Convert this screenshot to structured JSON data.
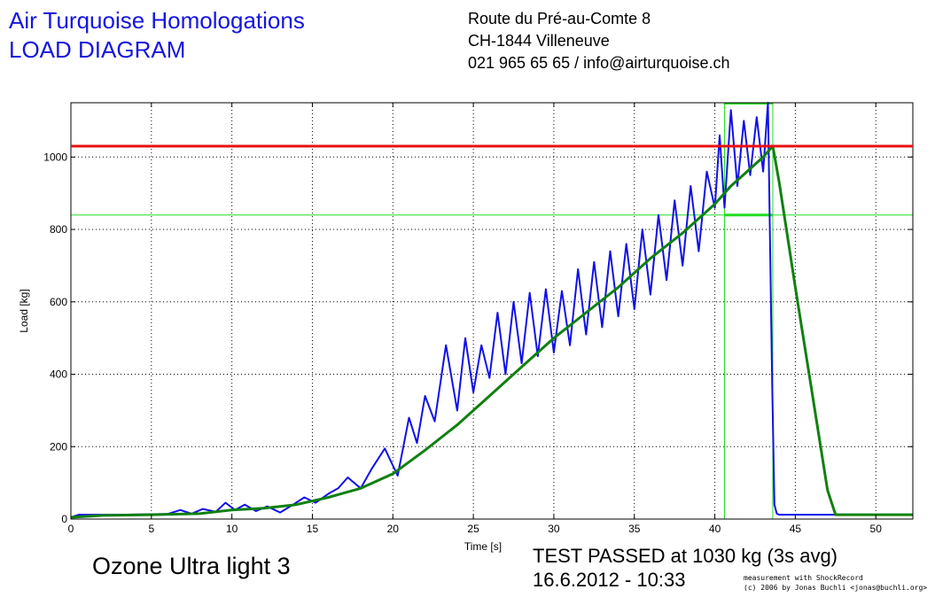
{
  "header": {
    "org_name": "Air Turquoise Homologations",
    "doc_title": "LOAD DIAGRAM",
    "address_line1": "Route du Pré-au-Comte 8",
    "address_line2": "CH-1844 Villeneuve",
    "address_line3": "021 965 65 65 / info@airturquoise.ch"
  },
  "footer": {
    "glider_name": "Ozone Ultra light 3",
    "result": "TEST PASSED at 1030 kg (3s avg)",
    "datetime": "16.6.2012 - 10:33",
    "credit_line1": "measurement with ShockRecord",
    "credit_line2": "(c) 2006 by Jonas Buchli <jonas@buchli.org>"
  },
  "colors": {
    "raw_load": "#1010e8",
    "avg_load": "#108010",
    "threshold": "#e81010",
    "marker": "#22dd22",
    "grid": "#000000"
  },
  "chart_data": {
    "type": "line",
    "xlabel": "Time [s]",
    "ylabel": "Load [kg]",
    "xlim": [
      0,
      52.3
    ],
    "ylim": [
      0,
      1150
    ],
    "x_ticks": [
      0,
      5,
      10,
      15,
      20,
      25,
      30,
      35,
      40,
      45,
      50
    ],
    "y_ticks": [
      0,
      200,
      400,
      600,
      800,
      1000
    ],
    "grid": true,
    "threshold_load": 1030,
    "lower_limit_load": 840,
    "window_x": [
      40.6,
      43.6
    ],
    "series": [
      {
        "key": "raw",
        "x": [
          0,
          0.5,
          3,
          6,
          6.8,
          7.5,
          8.2,
          9,
          9.6,
          10.2,
          10.8,
          11.5,
          12.2,
          13,
          13.8,
          14.5,
          15.2,
          16,
          16.6,
          17.2,
          18,
          18.7,
          19.5,
          20.3,
          21,
          21.5,
          22,
          22.6,
          23.3,
          24,
          24.5,
          25,
          25.5,
          26,
          26.5,
          27,
          27.5,
          28,
          28.5,
          29,
          29.5,
          30,
          30.5,
          31,
          31.5,
          32,
          32.5,
          33,
          33.5,
          34,
          34.5,
          35,
          35.5,
          36,
          36.5,
          37,
          37.5,
          38,
          38.5,
          39,
          39.5,
          40,
          40.3,
          40.6,
          41,
          41.4,
          41.8,
          42.2,
          42.6,
          43,
          43.3,
          43.55,
          43.7,
          43.85,
          44,
          44.3,
          45,
          47,
          52.3
        ],
        "y": [
          5,
          12,
          12,
          14,
          25,
          15,
          28,
          20,
          45,
          25,
          40,
          22,
          35,
          18,
          40,
          60,
          45,
          70,
          85,
          115,
          85,
          140,
          195,
          120,
          280,
          210,
          340,
          270,
          480,
          300,
          500,
          350,
          480,
          390,
          570,
          400,
          600,
          430,
          625,
          450,
          635,
          460,
          630,
          480,
          690,
          510,
          710,
          530,
          740,
          560,
          760,
          580,
          800,
          620,
          840,
          660,
          880,
          700,
          920,
          740,
          960,
          860,
          1060,
          860,
          1130,
          920,
          1100,
          950,
          1110,
          960,
          1150,
          400,
          40,
          15,
          12,
          12,
          12,
          12,
          12
        ]
      },
      {
        "key": "avg",
        "x": [
          0,
          2,
          5,
          8,
          10,
          12,
          14,
          16,
          18,
          20,
          22,
          24,
          26,
          28,
          30,
          32,
          34,
          36,
          38,
          40,
          41,
          42,
          43,
          43.6,
          44,
          45,
          46,
          47,
          47.5,
          52.3
        ],
        "y": [
          5,
          10,
          12,
          15,
          25,
          30,
          40,
          60,
          85,
          125,
          190,
          260,
          340,
          420,
          500,
          570,
          640,
          720,
          790,
          870,
          920,
          960,
          1000,
          1030,
          930,
          640,
          360,
          80,
          12,
          12
        ]
      }
    ]
  }
}
